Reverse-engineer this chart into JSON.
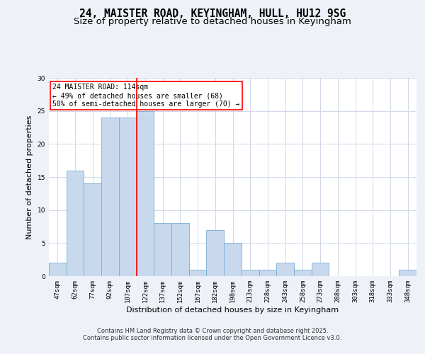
{
  "title_line1": "24, MAISTER ROAD, KEYINGHAM, HULL, HU12 9SG",
  "title_line2": "Size of property relative to detached houses in Keyingham",
  "xlabel": "Distribution of detached houses by size in Keyingham",
  "ylabel": "Number of detached properties",
  "categories": [
    "47sqm",
    "62sqm",
    "77sqm",
    "92sqm",
    "107sqm",
    "122sqm",
    "137sqm",
    "152sqm",
    "167sqm",
    "182sqm",
    "198sqm",
    "213sqm",
    "228sqm",
    "243sqm",
    "258sqm",
    "273sqm",
    "288sqm",
    "303sqm",
    "318sqm",
    "333sqm",
    "348sqm"
  ],
  "values": [
    2,
    16,
    14,
    24,
    24,
    25,
    8,
    8,
    1,
    7,
    5,
    1,
    1,
    2,
    1,
    2,
    0,
    0,
    0,
    0,
    1
  ],
  "bar_color": "#c8d9ee",
  "bar_edge_color": "#7aadd4",
  "vline_x": 4.5,
  "vline_color": "red",
  "annotation_text": "24 MAISTER ROAD: 114sqm\n← 49% of detached houses are smaller (68)\n50% of semi-detached houses are larger (70) →",
  "annotation_box_color": "white",
  "annotation_box_edge": "red",
  "ylim": [
    0,
    30
  ],
  "yticks": [
    0,
    5,
    10,
    15,
    20,
    25,
    30
  ],
  "footer_line1": "Contains HM Land Registry data © Crown copyright and database right 2025.",
  "footer_line2": "Contains public sector information licensed under the Open Government Licence v3.0.",
  "bg_color": "#eef2f8",
  "plot_bg_color": "#ffffff",
  "grid_color": "#d0d8e8",
  "title_fontsize": 10.5,
  "subtitle_fontsize": 9.5,
  "ylabel_fontsize": 8,
  "xlabel_fontsize": 8,
  "tick_fontsize": 6.5,
  "annotation_fontsize": 7,
  "footer_fontsize": 6
}
